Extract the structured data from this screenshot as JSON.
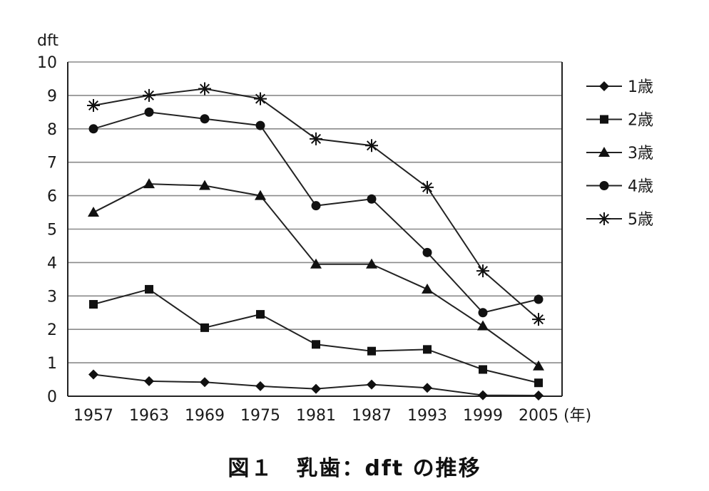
{
  "caption": "図１　乳歯：dft の推移",
  "chart_data": {
    "type": "line",
    "ylabel": "dft",
    "xunit": "(年)",
    "ylim": [
      0,
      10
    ],
    "yticks": [
      0,
      1,
      2,
      3,
      4,
      5,
      6,
      7,
      8,
      9,
      10
    ],
    "categories": [
      "1957",
      "1963",
      "1969",
      "1975",
      "1981",
      "1987",
      "1993",
      "1999",
      "2005"
    ],
    "grid": "horizontal",
    "legend": "right",
    "series": [
      {
        "name": "1歳",
        "marker": "diamond",
        "values": [
          0.65,
          0.45,
          0.42,
          0.3,
          0.22,
          0.35,
          0.25,
          0.03,
          0.02
        ]
      },
      {
        "name": "2歳",
        "marker": "square",
        "values": [
          2.75,
          3.2,
          2.05,
          2.45,
          1.55,
          1.35,
          1.4,
          0.8,
          0.4
        ]
      },
      {
        "name": "3歳",
        "marker": "triangle",
        "values": [
          5.5,
          6.35,
          6.3,
          6.0,
          3.95,
          3.95,
          3.2,
          2.1,
          0.9
        ]
      },
      {
        "name": "4歳",
        "marker": "circle",
        "values": [
          8.0,
          8.5,
          8.3,
          8.1,
          5.7,
          5.9,
          4.3,
          2.5,
          2.9
        ]
      },
      {
        "name": "5歳",
        "marker": "asterisk",
        "values": [
          8.7,
          9.0,
          9.2,
          8.9,
          7.7,
          7.5,
          6.25,
          3.75,
          2.3
        ]
      }
    ]
  }
}
